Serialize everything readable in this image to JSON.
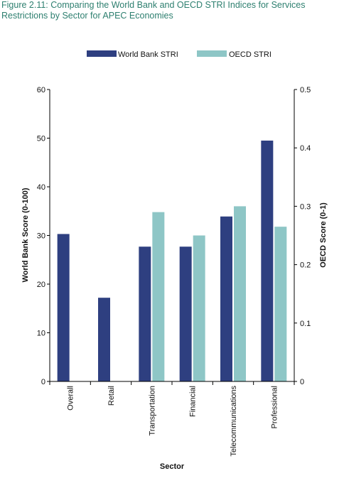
{
  "title": "Figure 2.11: Comparing the World Bank and OECD STRI Indices for Services Restrictions by Sector for APEC Economies",
  "colors": {
    "world_bank": "#2e3f80",
    "oecd": "#8ec6c6",
    "axis": "#000000"
  },
  "chart_data": {
    "type": "bar",
    "title": "Figure 2.11: Comparing the World Bank and OECD STRI Indices for Services Restrictions by Sector for APEC Economies",
    "categories": [
      "Overall",
      "Retail",
      "Transportation",
      "Financial",
      "Telecommunications",
      "Professional"
    ],
    "series": [
      {
        "name": "World Bank STRI",
        "axis": "left",
        "values": [
          30.3,
          17.2,
          27.7,
          27.7,
          33.9,
          49.5
        ]
      },
      {
        "name": "OECD STRI",
        "axis": "right",
        "values": [
          null,
          null,
          0.29,
          0.25,
          0.3,
          0.265
        ]
      }
    ],
    "xlabel": "Sector",
    "ylabel": "World Bank Score (0-100)",
    "y2label": "OECD Score (0-1)",
    "ylim": [
      0,
      60
    ],
    "y2lim": [
      0,
      0.5
    ],
    "yticks": [
      "0",
      "10",
      "20",
      "30",
      "40",
      "50",
      "60"
    ],
    "y2ticks": [
      "0",
      "0.1",
      "0.2",
      "0.3",
      "0.4",
      "0.5"
    ],
    "legend_position": "top",
    "grid": false
  }
}
